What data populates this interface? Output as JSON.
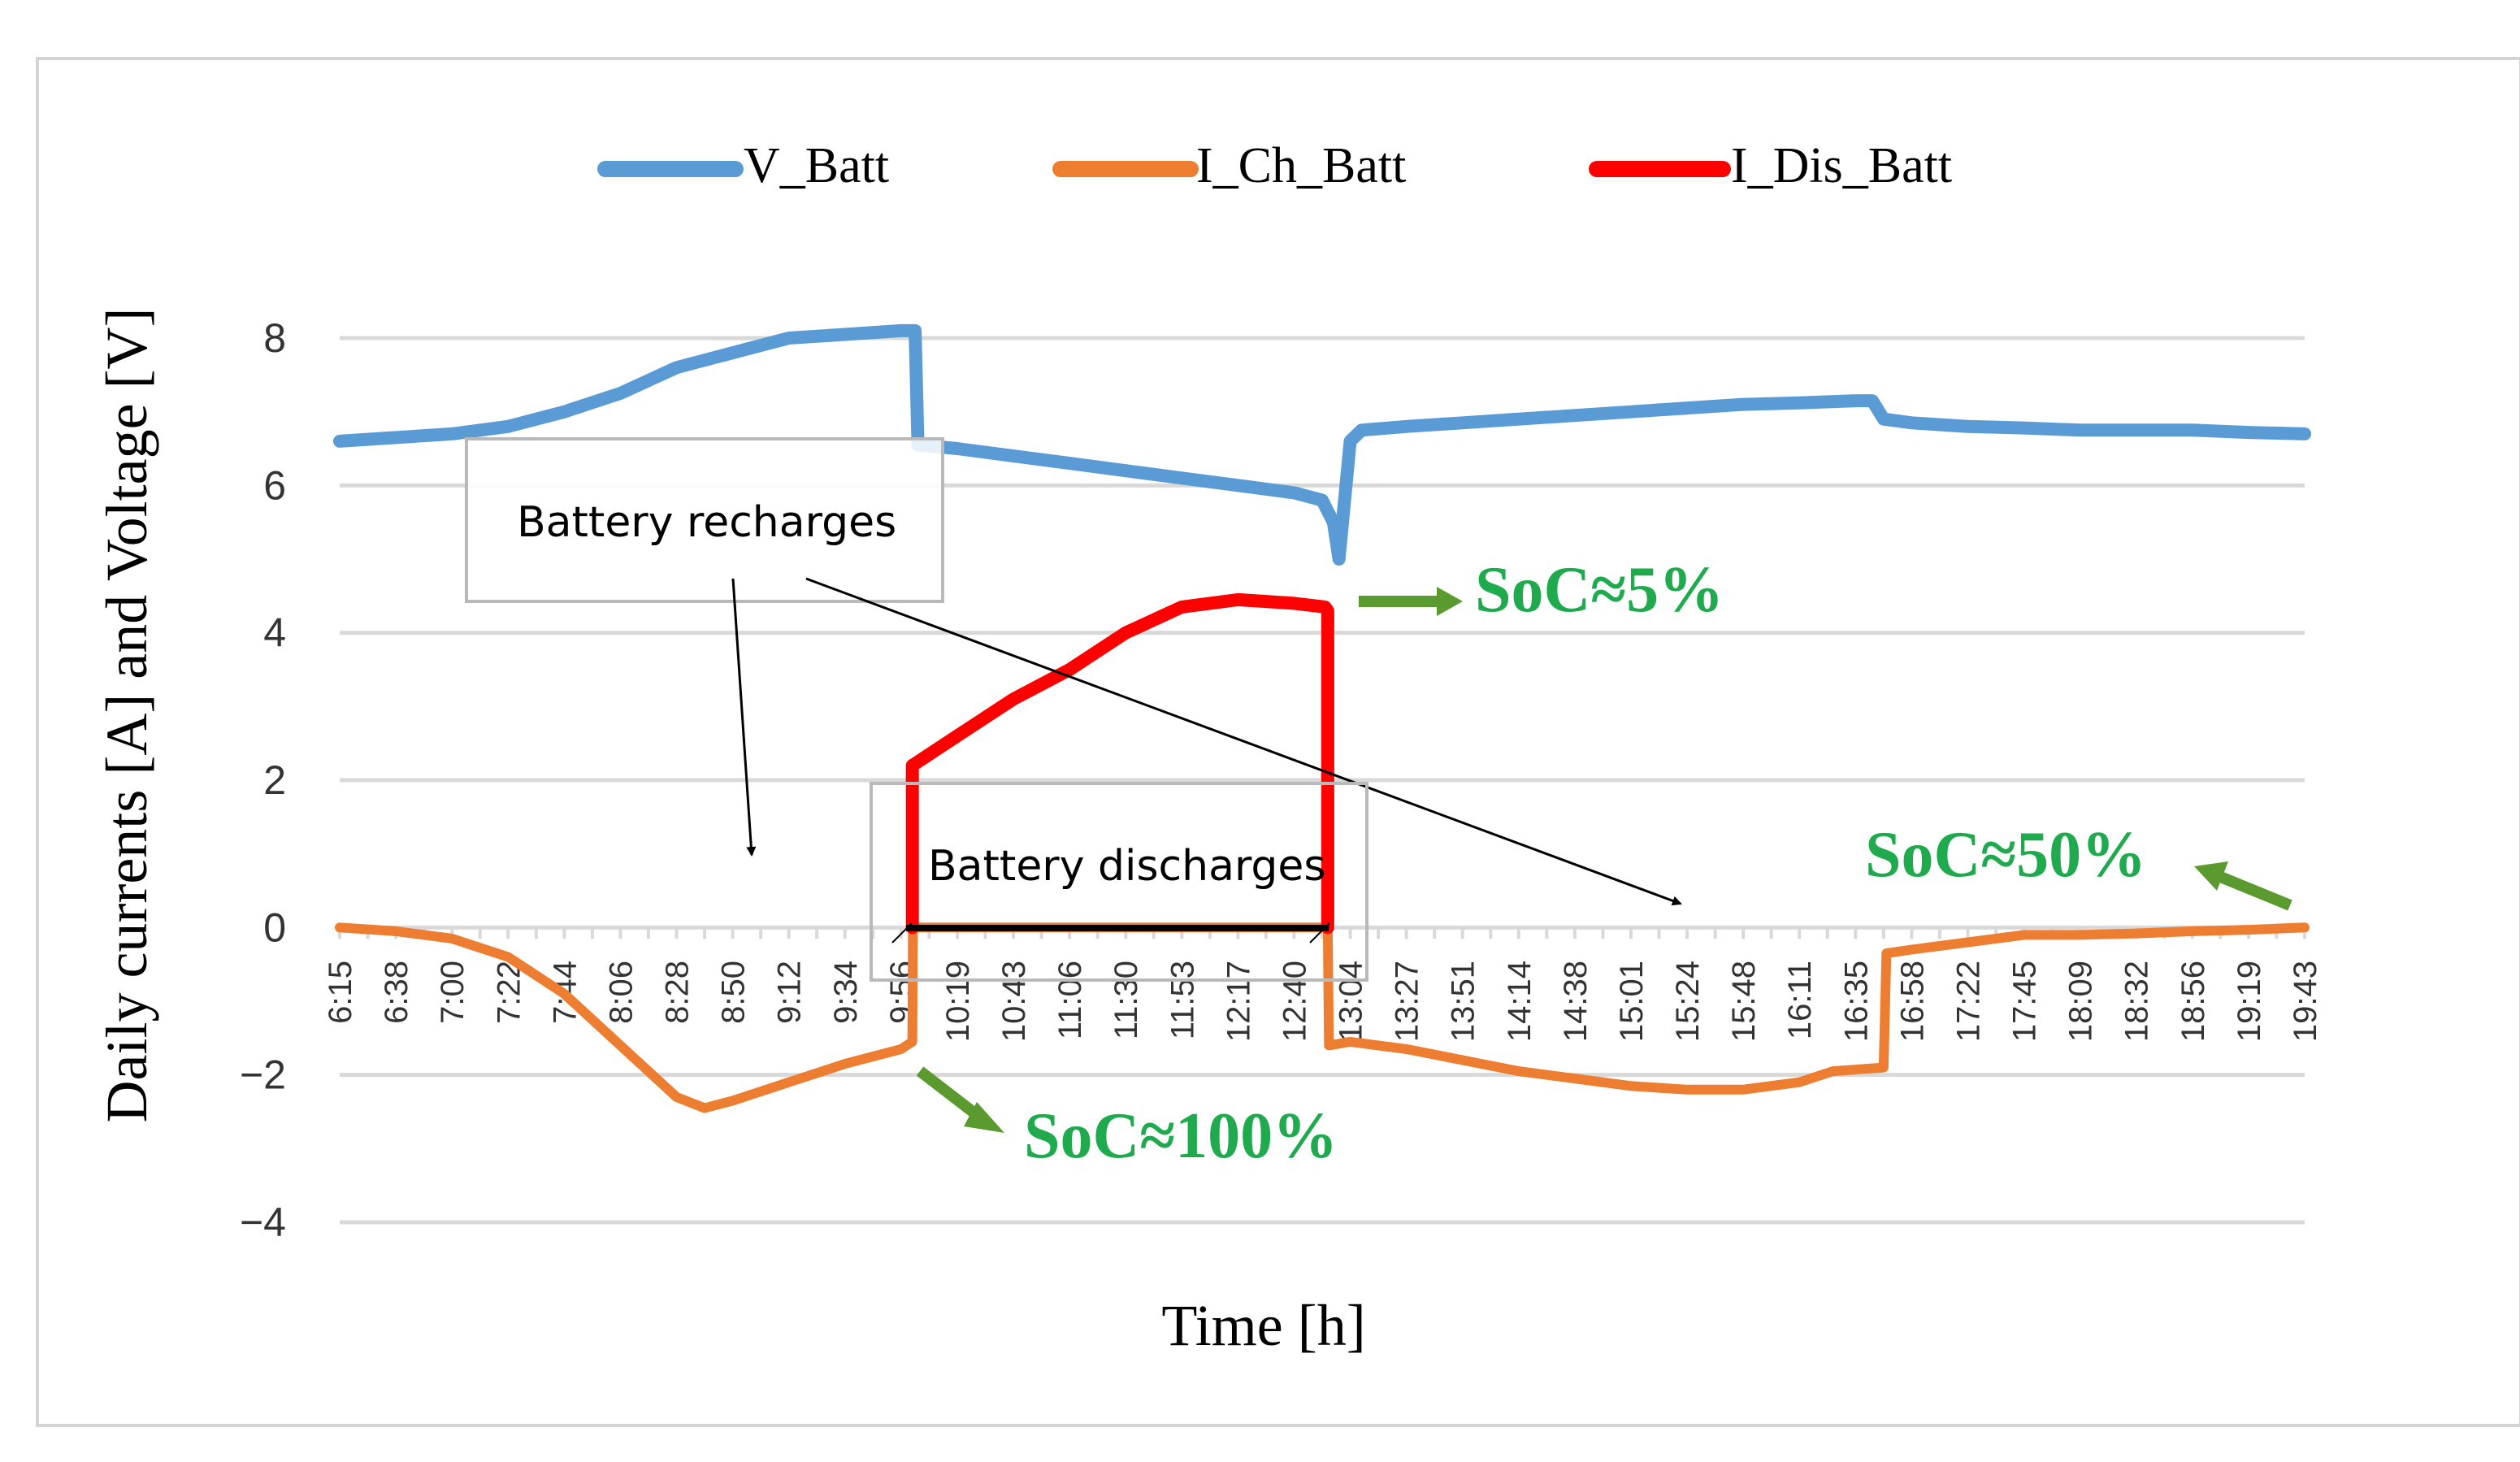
{
  "chart_data": {
    "type": "line",
    "xlabel": "Time [h]",
    "ylabel": "Daily currents [A] and Voltage [V]",
    "ylim": [
      -4,
      8
    ],
    "yticks": [
      8,
      6,
      4,
      2,
      0,
      -2,
      -4
    ],
    "ytick_labels": [
      "8",
      "6",
      "4",
      "2",
      "0",
      "−2",
      "−4"
    ],
    "grid": true,
    "legend_position": "top",
    "x_categories": [
      "6:15",
      "6:38",
      "7:00",
      "7:22",
      "7:44",
      "8:06",
      "8:28",
      "8:50",
      "9:12",
      "9:34",
      "9:56",
      "10:19",
      "10:43",
      "11:06",
      "11:30",
      "11:53",
      "12:17",
      "12:40",
      "13:04",
      "13:27",
      "13:51",
      "14:14",
      "14:38",
      "15:01",
      "15:24",
      "15:48",
      "16:11",
      "16:35",
      "16:58",
      "17:22",
      "17:45",
      "18:09",
      "18:32",
      "18:56",
      "19:19",
      "19:43"
    ],
    "series": [
      {
        "name": "V_Batt",
        "color": "#5b9bd5",
        "x": [
          0,
          1,
          2,
          3,
          4,
          5,
          6,
          7,
          8,
          9,
          10,
          10.25,
          10.3,
          11,
          12,
          13,
          14,
          15,
          16,
          17,
          17.5,
          17.7,
          17.8,
          18,
          18.2,
          19,
          20,
          21,
          22,
          23,
          24,
          25,
          26,
          27,
          27.3,
          27.5,
          28,
          29,
          30,
          31,
          32,
          33,
          34,
          35
        ],
        "y": [
          6.6,
          6.65,
          6.7,
          6.8,
          7.0,
          7.25,
          7.6,
          7.8,
          8.0,
          8.05,
          8.1,
          8.1,
          6.55,
          6.5,
          6.4,
          6.3,
          6.2,
          6.1,
          6.0,
          5.9,
          5.8,
          5.5,
          5.0,
          6.6,
          6.75,
          6.8,
          6.85,
          6.9,
          6.95,
          7.0,
          7.05,
          7.1,
          7.12,
          7.15,
          7.15,
          6.9,
          6.85,
          6.8,
          6.78,
          6.75,
          6.75,
          6.75,
          6.72,
          6.7
        ]
      },
      {
        "name": "I_Ch_Batt",
        "color": "#ed7d31",
        "x": [
          0,
          1,
          2,
          3,
          4,
          5,
          6,
          6.5,
          7,
          8,
          9,
          10,
          10.2,
          10.21,
          17.6,
          17.62,
          18,
          19,
          20,
          21,
          22,
          23,
          24,
          25,
          26,
          26.6,
          27.5,
          27.55,
          28,
          29,
          30,
          31,
          32,
          33,
          34,
          35
        ],
        "y": [
          0,
          -0.05,
          -0.15,
          -0.4,
          -0.9,
          -1.6,
          -2.3,
          -2.45,
          -2.35,
          -2.1,
          -1.85,
          -1.65,
          -1.55,
          0,
          0,
          -1.6,
          -1.55,
          -1.65,
          -1.8,
          -1.95,
          -2.05,
          -2.15,
          -2.2,
          -2.2,
          -2.1,
          -1.95,
          -1.9,
          -0.35,
          -0.3,
          -0.2,
          -0.1,
          -0.1,
          -0.08,
          -0.05,
          -0.03,
          0
        ]
      },
      {
        "name": "I_Dis_Batt",
        "color": "#ff0000",
        "x": [
          10.2,
          10.2,
          11,
          12,
          13,
          14,
          15,
          15.5,
          16,
          17,
          17.55,
          17.6,
          17.6
        ],
        "y": [
          0,
          2.2,
          2.6,
          3.1,
          3.5,
          4.0,
          4.35,
          4.4,
          4.45,
          4.4,
          4.35,
          4.3,
          0
        ]
      }
    ],
    "annotations": [
      {
        "text": "Battery recharges"
      },
      {
        "text": "Battery discharges"
      },
      {
        "text": "SoC≈5%"
      },
      {
        "text": "SoC≈100%"
      },
      {
        "text": "SoC≈50%"
      }
    ]
  }
}
